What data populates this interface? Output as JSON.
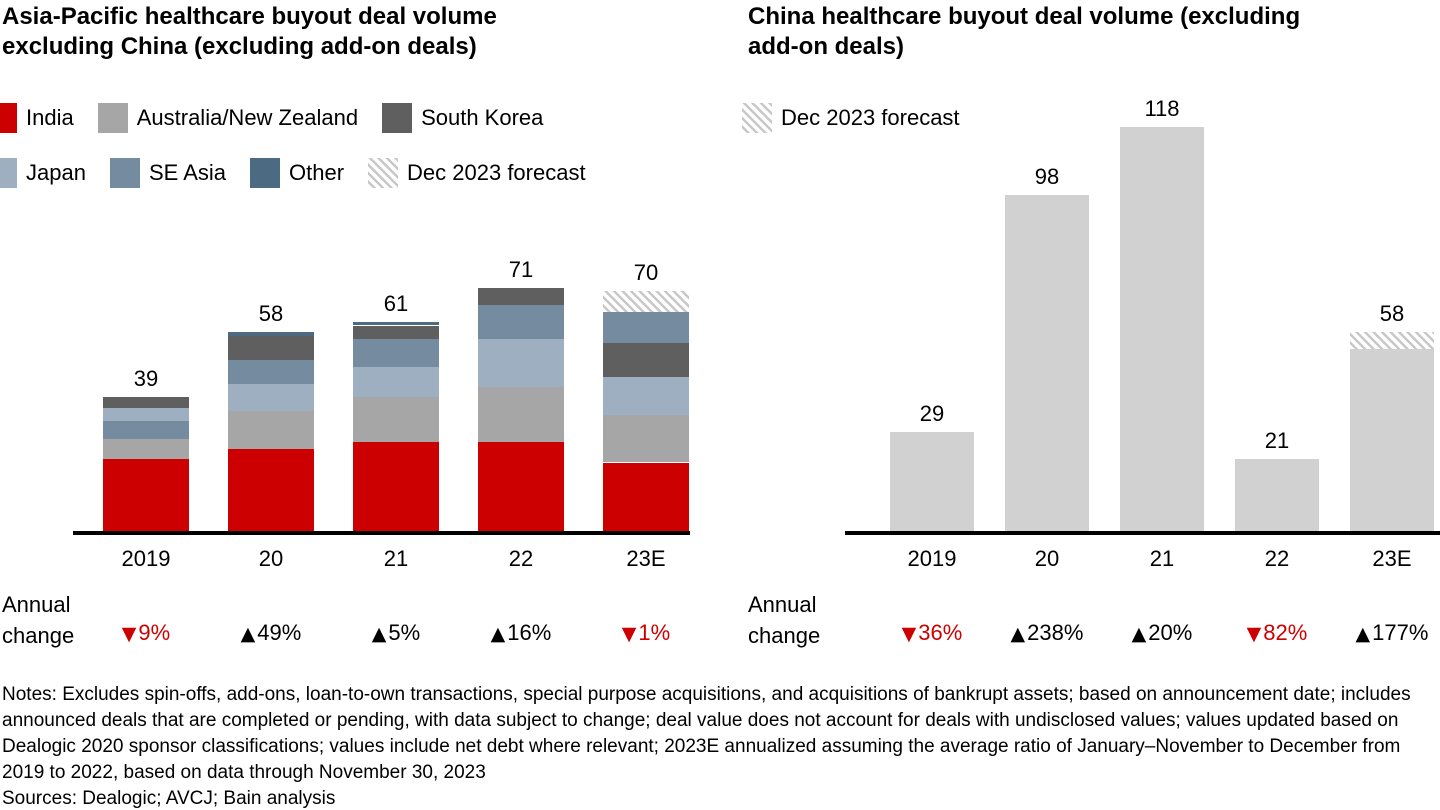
{
  "page": {
    "annual_change_label": "Annual change",
    "notes": "Notes: Excludes spin-offs, add-ons, loan-to-own transactions, special purpose acquisitions, and acquisitions of bankrupt assets; based on announcement date; includes announced deals that are completed or pending, with data subject to change; deal value does not account for deals with undisclosed values; values updated based on Dealogic 2020 sponsor classifications; values include net debt where relevant; 2023E annualized assuming the average ratio of January–November to December from 2019 to 2022, based on data through November 30, 2023",
    "sources": "Sources: Dealogic; AVCJ; Bain analysis"
  },
  "colors": {
    "india": "#cc0000",
    "australia_nz": "#a6a6a6",
    "japan": "#9dafc0",
    "se_asia": "#758ba0",
    "south_korea": "#5f5f5f",
    "other": "#4c6a82",
    "china": "#d1d1d1",
    "positive": "#000000",
    "negative": "#cc0000",
    "hatch_stripe": "#c8c8c8",
    "axis": "#000000"
  },
  "icons": {
    "up_triangle": "▲",
    "down_triangle": "▼"
  },
  "series_color_keys": {
    "India": "india",
    "Australia/New Zealand": "australia_nz",
    "Japan": "japan",
    "SE Asia": "se_asia",
    "South Korea": "south_korea",
    "Other": "other",
    "China": "china",
    "Dec 2023 forecast": "forecast"
  },
  "chart_data": [
    {
      "id": "left",
      "type": "bar",
      "stacked": true,
      "title": "Asia-Pacific healthcare buyout deal volume excluding China (excluding add-on deals)",
      "categories": [
        "2019",
        "20",
        "21",
        "22",
        "23E"
      ],
      "totals": [
        39,
        58,
        61,
        71,
        70
      ],
      "ylim": [
        0,
        125
      ],
      "grid": false,
      "legend_position": "top-left",
      "legend_rows": [
        [
          {
            "label": "India",
            "swatch": "india"
          },
          {
            "label": "Australia/New Zealand",
            "swatch": "australia_nz"
          },
          {
            "label": "South Korea",
            "swatch": "south_korea"
          }
        ],
        [
          {
            "label": "Japan",
            "swatch": "japan"
          },
          {
            "label": "SE Asia",
            "swatch": "se_asia"
          },
          {
            "label": "Other",
            "swatch": "other"
          },
          {
            "label": "Dec 2023 forecast",
            "swatch": "forecast"
          }
        ]
      ],
      "series": [
        {
          "name": "India",
          "values": [
            21,
            24,
            26,
            26,
            20
          ]
        },
        {
          "name": "Australia/New Zealand",
          "values": [
            6,
            11,
            13,
            16,
            14
          ]
        },
        {
          "name": "Japan",
          "values": [
            4,
            8,
            9,
            14,
            11
          ]
        },
        {
          "name": "SE Asia",
          "values": [
            5,
            7,
            8,
            10,
            9
          ]
        },
        {
          "name": "South Korea",
          "values": [
            3,
            7,
            4,
            5,
            10
          ]
        },
        {
          "name": "Other",
          "values": [
            0,
            1,
            1,
            0,
            0
          ]
        },
        {
          "name": "Dec 2023 forecast",
          "values": [
            0,
            0,
            0,
            0,
            6
          ]
        }
      ],
      "bars": [
        {
          "category": "2019",
          "total": 39,
          "segments": [
            {
              "series": "India",
              "value": 21
            },
            {
              "series": "Australia/New Zealand",
              "value": 6
            },
            {
              "series": "SE Asia",
              "value": 5
            },
            {
              "series": "Japan",
              "value": 4
            },
            {
              "series": "South Korea",
              "value": 3
            }
          ]
        },
        {
          "category": "20",
          "total": 58,
          "segments": [
            {
              "series": "India",
              "value": 24
            },
            {
              "series": "Australia/New Zealand",
              "value": 11
            },
            {
              "series": "Japan",
              "value": 8
            },
            {
              "series": "SE Asia",
              "value": 7
            },
            {
              "series": "South Korea",
              "value": 7
            },
            {
              "series": "Other",
              "value": 1
            }
          ]
        },
        {
          "category": "21",
          "total": 61,
          "segments": [
            {
              "series": "India",
              "value": 26
            },
            {
              "series": "Australia/New Zealand",
              "value": 13
            },
            {
              "series": "Japan",
              "value": 9
            },
            {
              "series": "SE Asia",
              "value": 8
            },
            {
              "series": "South Korea",
              "value": 4
            },
            {
              "series": "Other",
              "value": 1
            }
          ]
        },
        {
          "category": "22",
          "total": 71,
          "segments": [
            {
              "series": "India",
              "value": 26
            },
            {
              "series": "Australia/New Zealand",
              "value": 16
            },
            {
              "series": "Japan",
              "value": 14
            },
            {
              "series": "SE Asia",
              "value": 10
            },
            {
              "series": "South Korea",
              "value": 5
            }
          ]
        },
        {
          "category": "23E",
          "total": 70,
          "segments": [
            {
              "series": "India",
              "value": 20
            },
            {
              "series": "Australia/New Zealand",
              "value": 14
            },
            {
              "series": "Japan",
              "value": 11
            },
            {
              "series": "South Korea",
              "value": 10
            },
            {
              "series": "SE Asia",
              "value": 9
            },
            {
              "series": "Dec 2023 forecast",
              "value": 6
            }
          ]
        }
      ],
      "annual_change": [
        {
          "direction": "down",
          "label": "9%"
        },
        {
          "direction": "up",
          "label": "49%"
        },
        {
          "direction": "up",
          "label": "5%"
        },
        {
          "direction": "up",
          "label": "16%"
        },
        {
          "direction": "down",
          "label": "1%"
        }
      ]
    },
    {
      "id": "right",
      "type": "bar",
      "stacked": true,
      "title": "China healthcare buyout deal volume (excluding add-on deals)",
      "categories": [
        "2019",
        "20",
        "21",
        "22",
        "23E"
      ],
      "totals": [
        29,
        98,
        118,
        21,
        58
      ],
      "ylim": [
        0,
        125
      ],
      "grid": false,
      "legend_position": "top-left",
      "legend_rows": [
        [
          {
            "label": "Dec 2023 forecast",
            "swatch": "forecast"
          }
        ]
      ],
      "series": [
        {
          "name": "China",
          "values": [
            29,
            98,
            118,
            21,
            53
          ]
        },
        {
          "name": "Dec 2023 forecast",
          "values": [
            0,
            0,
            0,
            0,
            5
          ]
        }
      ],
      "bars": [
        {
          "category": "2019",
          "total": 29,
          "segments": [
            {
              "series": "China",
              "value": 29
            }
          ]
        },
        {
          "category": "20",
          "total": 98,
          "segments": [
            {
              "series": "China",
              "value": 98
            }
          ]
        },
        {
          "category": "21",
          "total": 118,
          "segments": [
            {
              "series": "China",
              "value": 118
            }
          ]
        },
        {
          "category": "22",
          "total": 21,
          "segments": [
            {
              "series": "China",
              "value": 21
            }
          ]
        },
        {
          "category": "23E",
          "total": 58,
          "segments": [
            {
              "series": "China",
              "value": 53
            },
            {
              "series": "Dec 2023 forecast",
              "value": 5
            }
          ]
        }
      ],
      "annual_change": [
        {
          "direction": "down",
          "label": "36%"
        },
        {
          "direction": "up",
          "label": "238%"
        },
        {
          "direction": "up",
          "label": "20%"
        },
        {
          "direction": "down",
          "label": "82%"
        },
        {
          "direction": "up",
          "label": "177%"
        }
      ]
    }
  ]
}
